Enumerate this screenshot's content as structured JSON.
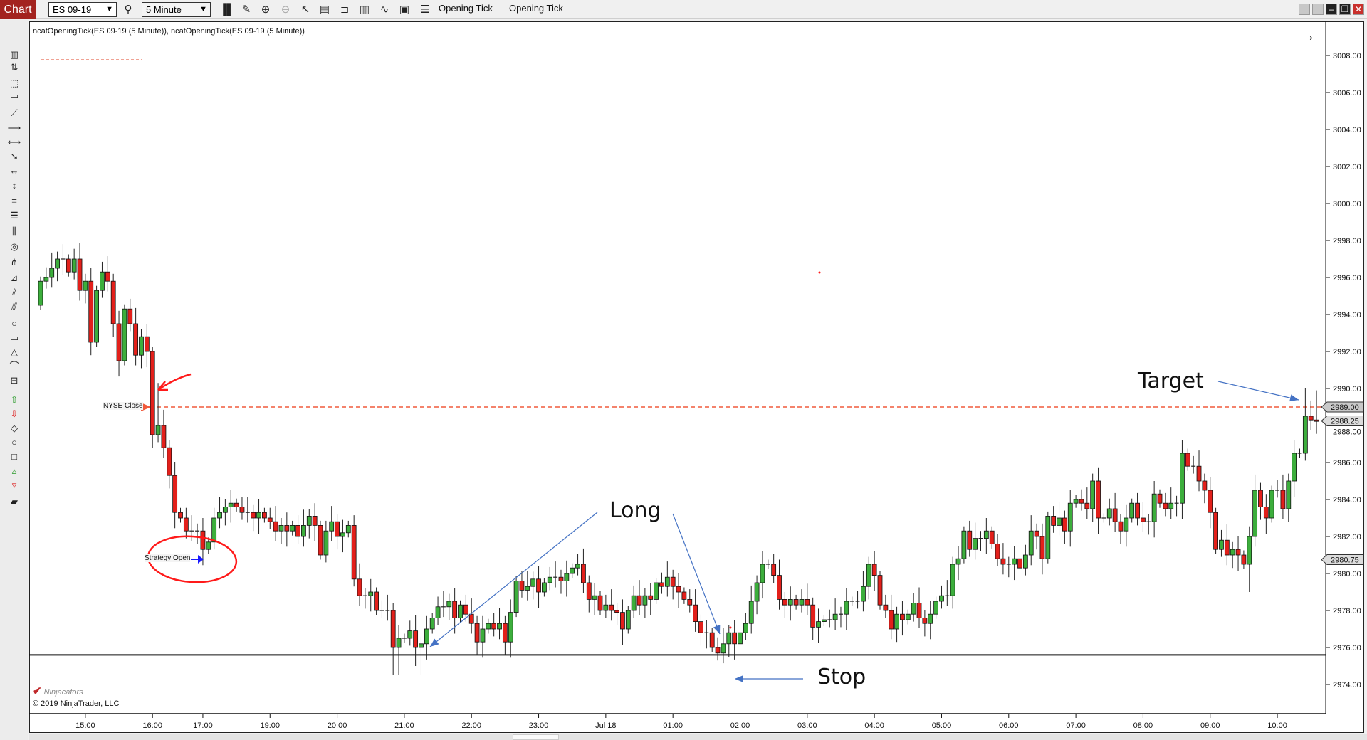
{
  "toolbar": {
    "chart_tab": "Chart",
    "instrument": "ES 09-19",
    "interval": "5 Minute",
    "icons": [
      "search-icon",
      "bar-type-icon",
      "pencil-icon",
      "zoom-in-icon",
      "zoom-out-icon",
      "pointer-icon",
      "data-box-icon",
      "properties-icon",
      "chart-style-icon",
      "indicators-icon",
      "strategies-icon",
      "list-icon"
    ],
    "strategy_labels": [
      "Opening Tick",
      "Opening Tick"
    ]
  },
  "window_controls": [
    "tile-icon",
    "tile-icon",
    "minimize-icon",
    "restore-icon",
    "close-icon"
  ],
  "left_tools": [
    "ruler-icon",
    "risk-reward-icon",
    "region-icon",
    "region-highlight-icon",
    "line-icon",
    "ray-icon",
    "extended-line-icon",
    "arrow-line-icon",
    "horizontal-line-icon",
    "vertical-line-icon",
    "fib-retracement-icon",
    "fib-extension-icon",
    "fib-time-icon",
    "fib-circle-icon",
    "andrews-pitchfork-icon",
    "gann-fan-icon",
    "regression-channel-icon",
    "trend-channel-icon",
    "ellipse-icon",
    "rectangle-icon",
    "triangle-icon",
    "arc-icon",
    "text-icon",
    "arrow-up-icon",
    "arrow-down-icon",
    "diamond-icon",
    "dot-icon",
    "square-icon",
    "triangle-up-icon",
    "triangle-down-icon",
    "trash-icon"
  ],
  "chart": {
    "title": "ncatOpeningTick(ES 09-19 (5 Minute)), ncatOpeningTick(ES 09-19 (5 Minute))",
    "nyse_close_label": "NYSE Close",
    "strategy_open_label": "Strategy Open",
    "logo": "Ninjacators",
    "copyright": "© 2019 NinjaTrader, LLC",
    "annotations": {
      "long": "Long",
      "stop": "Stop",
      "target": "Target"
    }
  },
  "chart_data": {
    "type": "candlestick",
    "title": "",
    "y_axis": {
      "min": 2972.8,
      "max": 3009.7,
      "tick_labels": [
        "3008.00",
        "3006.00",
        "3004.00",
        "3002.00",
        "3000.00",
        "2998.00",
        "2996.00",
        "2994.00",
        "2992.00",
        "2990.00",
        "2988.00",
        "2986.00",
        "2984.00",
        "2982.00",
        "2980.00",
        "2978.00",
        "2976.00",
        "2974.00"
      ]
    },
    "x_ticks": [
      {
        "label": "15:00",
        "bar": 8
      },
      {
        "label": "16:00",
        "bar": 20
      },
      {
        "label": "17:00",
        "bar": 29
      },
      {
        "label": "19:00",
        "bar": 41
      },
      {
        "label": "20:00",
        "bar": 53
      },
      {
        "label": "21:00",
        "bar": 65
      },
      {
        "label": "22:00",
        "bar": 77
      },
      {
        "label": "23:00",
        "bar": 89
      },
      {
        "label": "Jul 18",
        "bar": 101
      },
      {
        "label": "01:00",
        "bar": 113
      },
      {
        "label": "02:00",
        "bar": 125
      },
      {
        "label": "03:00",
        "bar": 137
      },
      {
        "label": "04:00",
        "bar": 149
      },
      {
        "label": "05:00",
        "bar": 161
      },
      {
        "label": "06:00",
        "bar": 173
      },
      {
        "label": "07:00",
        "bar": 185
      },
      {
        "label": "08:00",
        "bar": 197
      },
      {
        "label": "09:00",
        "bar": 209
      },
      {
        "label": "10:00",
        "bar": 221
      }
    ],
    "first_open": 2994.5,
    "closes": [
      2995.8,
      2996.0,
      2996.5,
      2997.0,
      2997.0,
      2996.3,
      2997.0,
      2995.3,
      2995.8,
      2992.5,
      2995.3,
      2996.3,
      2995.8,
      2993.5,
      2991.5,
      2994.3,
      2993.5,
      2991.8,
      2992.8,
      2992.0,
      2987.5,
      2988.0,
      2986.8,
      2985.3,
      2983.3,
      2983.0,
      2982.3,
      2982.3,
      2982.3,
      2981.3,
      2981.7,
      2983.0,
      2983.3,
      2983.6,
      2983.8,
      2983.6,
      2983.3,
      2983.3,
      2983.0,
      2983.3,
      2983.0,
      2982.8,
      2982.3,
      2982.6,
      2982.3,
      2982.6,
      2982.0,
      2982.6,
      2983.1,
      2982.6,
      2981.0,
      2982.3,
      2982.8,
      2982.0,
      2982.2,
      2982.6,
      2979.7,
      2978.8,
      2978.8,
      2979.0,
      2978.0,
      2978.0,
      2978.0,
      2976.0,
      2976.5,
      2976.5,
      2976.9,
      2976.0,
      2976.2,
      2977.0,
      2977.6,
      2978.2,
      2978.2,
      2978.5,
      2977.6,
      2978.3,
      2977.8,
      2977.3,
      2976.3,
      2977.0,
      2977.3,
      2977.0,
      2977.3,
      2976.3,
      2977.9,
      2979.6,
      2979.1,
      2979.3,
      2979.7,
      2979.0,
      2979.5,
      2979.8,
      2979.8,
      2979.6,
      2980.0,
      2980.3,
      2980.5,
      2979.5,
      2978.6,
      2978.8,
      2978.0,
      2978.3,
      2978.0,
      2977.9,
      2977.0,
      2978.0,
      2978.8,
      2978.3,
      2978.8,
      2978.6,
      2979.5,
      2979.3,
      2979.8,
      2979.3,
      2979.0,
      2978.6,
      2978.3,
      2977.4,
      2976.8,
      2976.8,
      2976.0,
      2975.7,
      2976.2,
      2976.8,
      2976.2,
      2976.8,
      2977.3,
      2978.5,
      2979.5,
      2980.5,
      2980.5,
      2979.9,
      2978.6,
      2978.3,
      2978.6,
      2978.3,
      2978.6,
      2978.3,
      2977.1,
      2977.4,
      2977.5,
      2977.5,
      2977.8,
      2977.8,
      2978.5,
      2978.5,
      2978.5,
      2979.3,
      2980.5,
      2979.9,
      2978.3,
      2978.0,
      2977.0,
      2977.8,
      2977.5,
      2977.8,
      2978.4,
      2977.6,
      2977.3,
      2977.8,
      2978.5,
      2978.8,
      2978.8,
      2980.5,
      2980.8,
      2982.3,
      2981.3,
      2981.9,
      2981.9,
      2982.3,
      2981.6,
      2980.8,
      2980.5,
      2980.5,
      2980.8,
      2980.3,
      2981.0,
      2982.3,
      2982.0,
      2980.8,
      2983.1,
      2982.6,
      2983.0,
      2982.3,
      2983.8,
      2984.0,
      2983.8,
      2983.5,
      2985.0,
      2983.0,
      2983.0,
      2983.5,
      2982.8,
      2982.3,
      2983.0,
      2983.8,
      2983.0,
      2982.8,
      2982.8,
      2984.3,
      2983.8,
      2983.5,
      2983.8,
      2983.8,
      2986.5,
      2985.8,
      2985.8,
      2985.0,
      2984.5,
      2983.3,
      2981.3,
      2981.8,
      2981.0,
      2981.3,
      2981.0,
      2980.5,
      2982.0,
      2984.5,
      2983.6,
      2983.0,
      2984.5,
      2984.5,
      2983.5,
      2985.0,
      2986.5,
      2986.5,
      2988.5,
      2988.3,
      2988.25
    ],
    "low_extremes": {
      "9": 2991.8,
      "20": 2986.8,
      "63": 2974.5,
      "64": 2974.5,
      "67": 2975.0,
      "68": 2974.5,
      "216": 2979.0
    },
    "high_extremes": {
      "4": 2997.8,
      "21": 2990.3,
      "226": 2990.0,
      "228": 2989.9
    },
    "levels": {
      "nyse_close": {
        "price": 2989.0,
        "label": "2989.00",
        "color": "#f05a3c"
      },
      "last_price": {
        "price": 2988.25,
        "label": "2988.25"
      },
      "entry": {
        "price": 2980.75,
        "label": "2980.75"
      },
      "stop": {
        "price": 2975.6
      }
    },
    "colors": {
      "up": "#3cae3c",
      "down": "#e3201b",
      "outline": "#111111",
      "annotation_arrow": "#4472c4",
      "highlight": "#ff1a1a"
    }
  }
}
